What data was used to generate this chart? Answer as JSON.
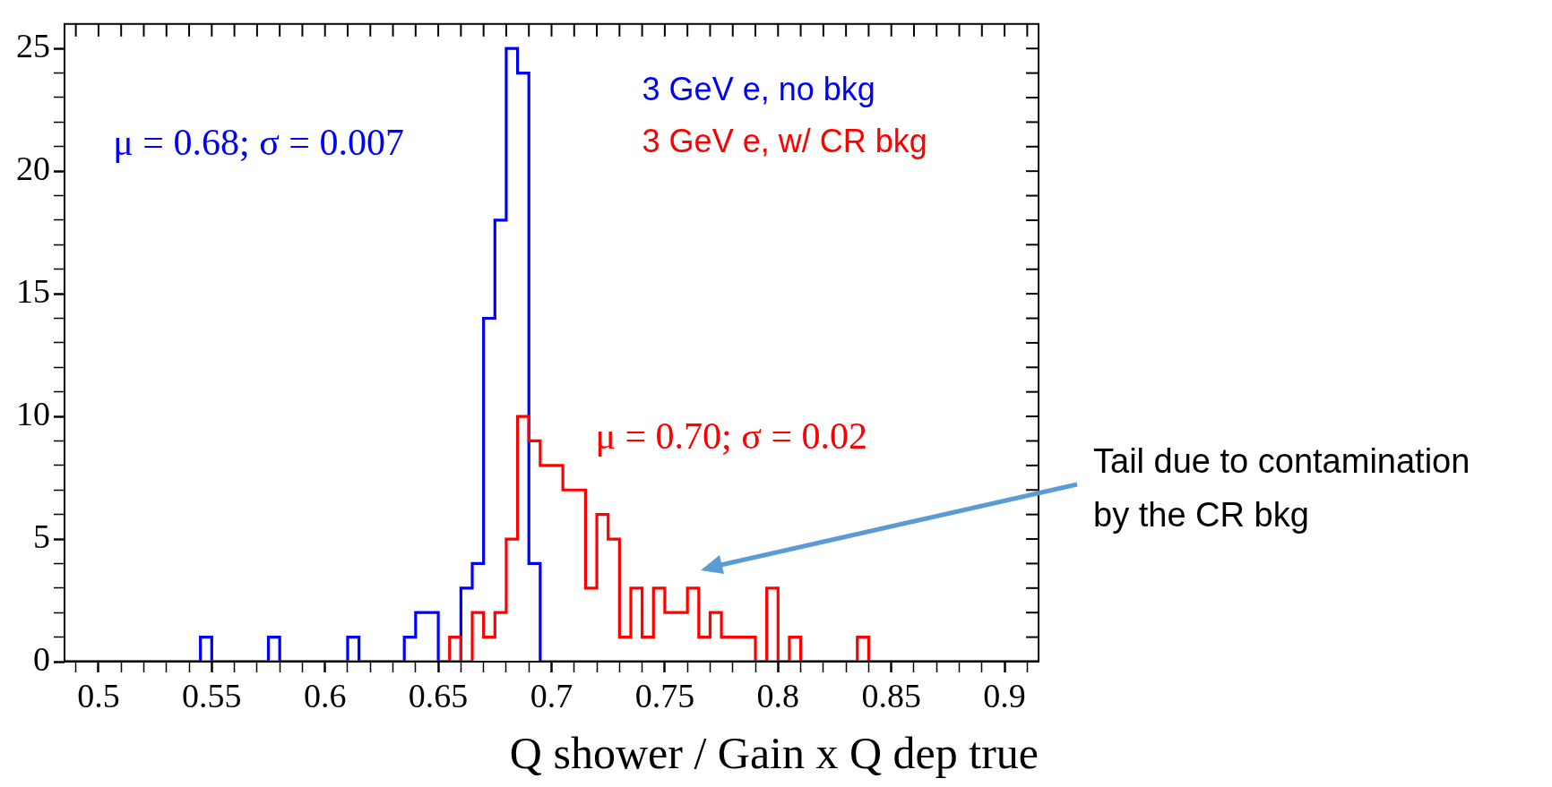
{
  "chart_data": {
    "type": "histogram",
    "xlabel": "Q shower / Gain x Q dep true",
    "bins": [
      0.485,
      0.49,
      0.495,
      0.5,
      0.505,
      0.51,
      0.515,
      0.52,
      0.525,
      0.53,
      0.535,
      0.54,
      0.545,
      0.55,
      0.555,
      0.56,
      0.565,
      0.57,
      0.575,
      0.58,
      0.585,
      0.59,
      0.595,
      0.6,
      0.605,
      0.61,
      0.615,
      0.62,
      0.625,
      0.63,
      0.635,
      0.64,
      0.645,
      0.65,
      0.655,
      0.66,
      0.665,
      0.67,
      0.675,
      0.68,
      0.685,
      0.69,
      0.695,
      0.7,
      0.705,
      0.71,
      0.715,
      0.72,
      0.725,
      0.73,
      0.735,
      0.74,
      0.745,
      0.75,
      0.755,
      0.76,
      0.765,
      0.77,
      0.775,
      0.78,
      0.785,
      0.79,
      0.795,
      0.8,
      0.805,
      0.81,
      0.815,
      0.82,
      0.825,
      0.83,
      0.835,
      0.84,
      0.845,
      0.85,
      0.855,
      0.86,
      0.865,
      0.87,
      0.875,
      0.88,
      0.885,
      0.89,
      0.895,
      0.9,
      0.905,
      0.91,
      0.915
    ],
    "series": [
      {
        "name": "3 GeV e, no bkg",
        "color": "#0000ff",
        "values": [
          0,
          0,
          0,
          0,
          0,
          0,
          0,
          0,
          0,
          0,
          0,
          0,
          1,
          0,
          0,
          0,
          0,
          0,
          1,
          0,
          0,
          0,
          0,
          0,
          0,
          1,
          0,
          0,
          0,
          0,
          1,
          2,
          2,
          0,
          0,
          3,
          4,
          14,
          18,
          25,
          24,
          4,
          0,
          0,
          0,
          0,
          0,
          0,
          0,
          0,
          0,
          0,
          0,
          0,
          0,
          0,
          0,
          0,
          0,
          0,
          0,
          0,
          0,
          0,
          0,
          0,
          0,
          0,
          0,
          0,
          0,
          0,
          0,
          0,
          0,
          0,
          0,
          0,
          0,
          0,
          0,
          0,
          0,
          0,
          0,
          0
        ]
      },
      {
        "name": "3 GeV e, w/ CR bkg",
        "color": "#ff0000",
        "values": [
          0,
          0,
          0,
          0,
          0,
          0,
          0,
          0,
          0,
          0,
          0,
          0,
          0,
          0,
          0,
          0,
          0,
          0,
          0,
          0,
          0,
          0,
          0,
          0,
          0,
          0,
          0,
          0,
          0,
          0,
          0,
          0,
          0,
          0,
          1,
          0,
          2,
          1,
          2,
          5,
          10,
          9,
          8,
          8,
          7,
          7,
          3,
          6,
          5,
          1,
          3,
          1,
          3,
          2,
          2,
          3,
          1,
          2,
          1,
          1,
          1,
          0,
          3,
          0,
          1,
          0,
          0,
          0,
          0,
          0,
          1,
          0,
          0,
          0,
          0,
          0,
          0,
          0,
          0,
          0,
          0,
          0,
          0,
          0,
          0,
          0
        ]
      }
    ],
    "xlim": [
      0.485,
      0.915
    ],
    "xticks": [
      {
        "value": 0.49,
        "label": null
      },
      {
        "value": 0.5,
        "label": "0.5"
      },
      {
        "value": 0.51,
        "label": null
      },
      {
        "value": 0.52,
        "label": null
      },
      {
        "value": 0.53,
        "label": null
      },
      {
        "value": 0.54,
        "label": null
      },
      {
        "value": 0.55,
        "label": "0.55"
      },
      {
        "value": 0.56,
        "label": null
      },
      {
        "value": 0.57,
        "label": null
      },
      {
        "value": 0.58,
        "label": null
      },
      {
        "value": 0.59,
        "label": null
      },
      {
        "value": 0.6,
        "label": "0.6"
      },
      {
        "value": 0.61,
        "label": null
      },
      {
        "value": 0.62,
        "label": null
      },
      {
        "value": 0.63,
        "label": null
      },
      {
        "value": 0.64,
        "label": null
      },
      {
        "value": 0.65,
        "label": "0.65"
      },
      {
        "value": 0.66,
        "label": null
      },
      {
        "value": 0.67,
        "label": null
      },
      {
        "value": 0.68,
        "label": null
      },
      {
        "value": 0.69,
        "label": null
      },
      {
        "value": 0.7,
        "label": "0.7"
      },
      {
        "value": 0.71,
        "label": null
      },
      {
        "value": 0.72,
        "label": null
      },
      {
        "value": 0.73,
        "label": null
      },
      {
        "value": 0.74,
        "label": null
      },
      {
        "value": 0.75,
        "label": "0.75"
      },
      {
        "value": 0.76,
        "label": null
      },
      {
        "value": 0.77,
        "label": null
      },
      {
        "value": 0.78,
        "label": null
      },
      {
        "value": 0.79,
        "label": null
      },
      {
        "value": 0.8,
        "label": "0.8"
      },
      {
        "value": 0.81,
        "label": null
      },
      {
        "value": 0.82,
        "label": null
      },
      {
        "value": 0.83,
        "label": null
      },
      {
        "value": 0.84,
        "label": null
      },
      {
        "value": 0.85,
        "label": "0.85"
      },
      {
        "value": 0.86,
        "label": null
      },
      {
        "value": 0.87,
        "label": null
      },
      {
        "value": 0.88,
        "label": null
      },
      {
        "value": 0.89,
        "label": null
      },
      {
        "value": 0.9,
        "label": "0.9"
      },
      {
        "value": 0.91,
        "label": null
      }
    ],
    "ylim": [
      0,
      26
    ],
    "yticks": [
      0,
      {
        "value": 1,
        "label": null
      },
      {
        "value": 2,
        "label": null
      },
      {
        "value": 3,
        "label": null
      },
      {
        "value": 4,
        "label": null
      },
      5,
      {
        "value": 6,
        "label": null
      },
      {
        "value": 7,
        "label": null
      },
      {
        "value": 8,
        "label": null
      },
      {
        "value": 9,
        "label": null
      },
      10,
      {
        "value": 11,
        "label": null
      },
      {
        "value": 12,
        "label": null
      },
      {
        "value": 13,
        "label": null
      },
      {
        "value": 14,
        "label": null
      },
      15,
      {
        "value": 16,
        "label": null
      },
      {
        "value": 17,
        "label": null
      },
      {
        "value": 18,
        "label": null
      },
      {
        "value": 19,
        "label": null
      },
      20,
      {
        "value": 21,
        "label": null
      },
      {
        "value": 22,
        "label": null
      },
      {
        "value": 23,
        "label": null
      },
      {
        "value": 24,
        "label": null
      },
      25
    ],
    "legend": "top right",
    "annotations": [
      "μ = 0.68; σ = 0.007",
      "μ = 0.70; σ = 0.02",
      "Tail due to contamination by the CR bkg"
    ]
  }
}
